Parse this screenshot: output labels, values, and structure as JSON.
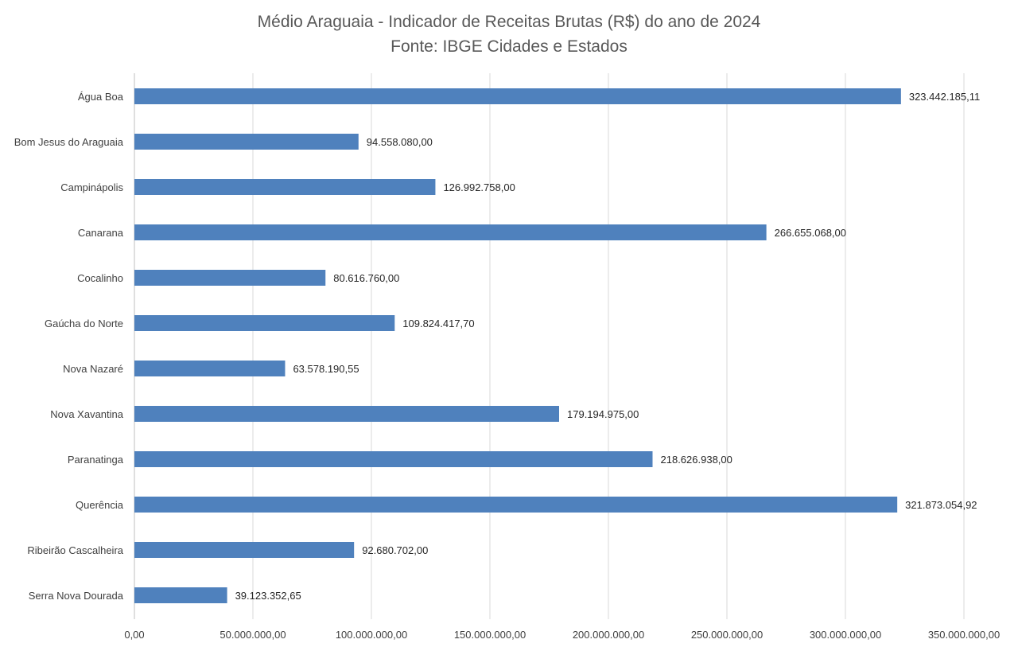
{
  "chart_data": {
    "type": "bar",
    "orientation": "horizontal",
    "title": "Médio Araguaia - Indicador de Receitas Brutas (R$) do ano de 2024",
    "subtitle": "Fonte: IBGE Cidades e Estados",
    "xlabel": "",
    "ylabel": "",
    "xlim": [
      0,
      350000000
    ],
    "grid": "vertical",
    "legend": "none",
    "bar_color": "#4f81bd",
    "x_ticks": [
      0,
      50000000,
      100000000,
      150000000,
      200000000,
      250000000,
      300000000,
      350000000
    ],
    "x_tick_labels": [
      "0,00",
      "50.000.000,00",
      "100.000.000,00",
      "150.000.000,00",
      "200.000.000,00",
      "250.000.000,00",
      "300.000.000,00",
      "350.000.000,00"
    ],
    "categories": [
      "Água Boa",
      "Bom Jesus do Araguaia",
      "Campinápolis",
      "Canarana",
      "Cocalinho",
      "Gaúcha do Norte",
      "Nova Nazaré",
      "Nova Xavantina",
      "Paranatinga",
      "Querência",
      "Ribeirão Cascalheira",
      "Serra Nova Dourada"
    ],
    "values": [
      323442185.11,
      94558080.0,
      126992758.0,
      266655068.0,
      80616760.0,
      109824417.7,
      63578190.55,
      179194975.0,
      218626938.0,
      321873054.92,
      92680702.0,
      39123352.65
    ],
    "value_labels": [
      "323.442.185,11",
      "94.558.080,00",
      "126.992.758,00",
      "266.655.068,00",
      "80.616.760,00",
      "109.824.417,70",
      "63.578.190,55",
      "179.194.975,00",
      "218.626.938,00",
      "321.873.054,92",
      "92.680.702,00",
      "39.123.352,65"
    ]
  }
}
